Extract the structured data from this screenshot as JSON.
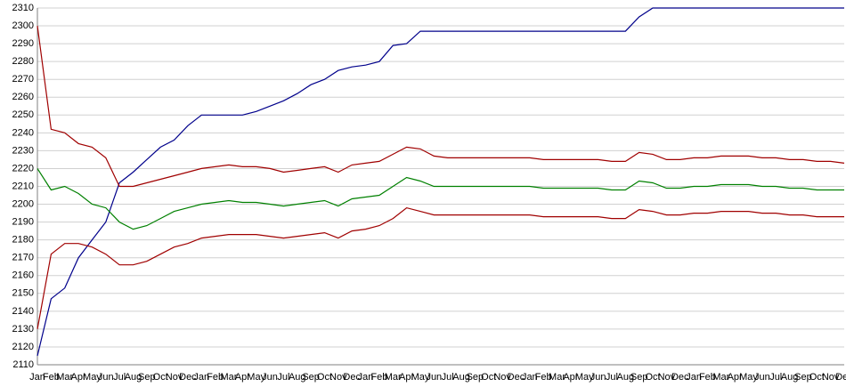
{
  "chart_data": {
    "type": "line",
    "categories": [
      "Jan",
      "Feb",
      "Mar",
      "Apr",
      "May",
      "Jun",
      "Jul",
      "Aug",
      "Sep",
      "Oct",
      "Nov",
      "Dec",
      "Jan",
      "Feb",
      "Mar",
      "Apr",
      "May",
      "Jun",
      "Jul",
      "Aug",
      "Sep",
      "Oct",
      "Nov",
      "Dec",
      "Jan",
      "Feb",
      "Mar",
      "Apr",
      "May",
      "Jun",
      "Jul",
      "Aug",
      "Sep",
      "Oct",
      "Nov",
      "Dec",
      "Jan",
      "Feb",
      "Mar",
      "Apr",
      "May",
      "Jun",
      "Jul",
      "Aug",
      "Sep",
      "Oct",
      "Nov",
      "Dec",
      "Jan",
      "Feb",
      "Mar",
      "Apr",
      "May",
      "Jun",
      "Jul",
      "Aug",
      "Sep",
      "Oct",
      "Nov",
      "Dec"
    ],
    "ylim": [
      2110,
      2310
    ],
    "yticks": [
      2110,
      2120,
      2130,
      2140,
      2150,
      2160,
      2170,
      2180,
      2190,
      2200,
      2210,
      2220,
      2230,
      2240,
      2250,
      2260,
      2270,
      2280,
      2290,
      2300,
      2310
    ],
    "grid": true,
    "series": [
      {
        "color": "#00008b",
        "values": [
          2115,
          2147,
          2153,
          2170,
          2180,
          2190,
          2212,
          2218,
          2225,
          2232,
          2236,
          2244,
          2250,
          2250,
          2250,
          2250,
          2252,
          2255,
          2258,
          2262,
          2267,
          2270,
          2275,
          2277,
          2278,
          2280,
          2289,
          2290,
          2297,
          2297,
          2297,
          2297,
          2297,
          2297,
          2297,
          2297,
          2297,
          2297,
          2297,
          2297,
          2297,
          2297,
          2297,
          2297,
          2305,
          2310,
          2310,
          2310,
          2310,
          2310,
          2310,
          2310,
          2310,
          2310,
          2310,
          2310,
          2310,
          2310,
          2310,
          2310
        ]
      },
      {
        "color": "#a00000",
        "values": [
          2300,
          2242,
          2240,
          2234,
          2232,
          2226,
          2210,
          2210,
          2212,
          2214,
          2216,
          2218,
          2220,
          2221,
          2222,
          2221,
          2221,
          2220,
          2218,
          2219,
          2220,
          2221,
          2218,
          2222,
          2223,
          2224,
          2228,
          2232,
          2231,
          2227,
          2226,
          2226,
          2226,
          2226,
          2226,
          2226,
          2226,
          2225,
          2225,
          2225,
          2225,
          2225,
          2224,
          2224,
          2229,
          2228,
          2225,
          2225,
          2226,
          2226,
          2227,
          2227,
          2227,
          2226,
          2226,
          2225,
          2225,
          2224,
          2224,
          2223
        ]
      },
      {
        "color": "#008000",
        "values": [
          2220,
          2208,
          2210,
          2206,
          2200,
          2198,
          2190,
          2186,
          2188,
          2192,
          2196,
          2198,
          2200,
          2201,
          2202,
          2201,
          2201,
          2200,
          2199,
          2200,
          2201,
          2202,
          2199,
          2203,
          2204,
          2205,
          2210,
          2215,
          2213,
          2210,
          2210,
          2210,
          2210,
          2210,
          2210,
          2210,
          2210,
          2209,
          2209,
          2209,
          2209,
          2209,
          2208,
          2208,
          2213,
          2212,
          2209,
          2209,
          2210,
          2210,
          2211,
          2211,
          2211,
          2210,
          2210,
          2209,
          2209,
          2208,
          2208,
          2208
        ]
      },
      {
        "color": "#a00000",
        "values": [
          2130,
          2172,
          2178,
          2178,
          2176,
          2172,
          2166,
          2166,
          2168,
          2172,
          2176,
          2178,
          2181,
          2182,
          2183,
          2183,
          2183,
          2182,
          2181,
          2182,
          2183,
          2184,
          2181,
          2185,
          2186,
          2188,
          2192,
          2198,
          2196,
          2194,
          2194,
          2194,
          2194,
          2194,
          2194,
          2194,
          2194,
          2193,
          2193,
          2193,
          2193,
          2193,
          2192,
          2192,
          2197,
          2196,
          2194,
          2194,
          2195,
          2195,
          2196,
          2196,
          2196,
          2195,
          2195,
          2194,
          2194,
          2193,
          2193,
          2193
        ]
      }
    ]
  }
}
